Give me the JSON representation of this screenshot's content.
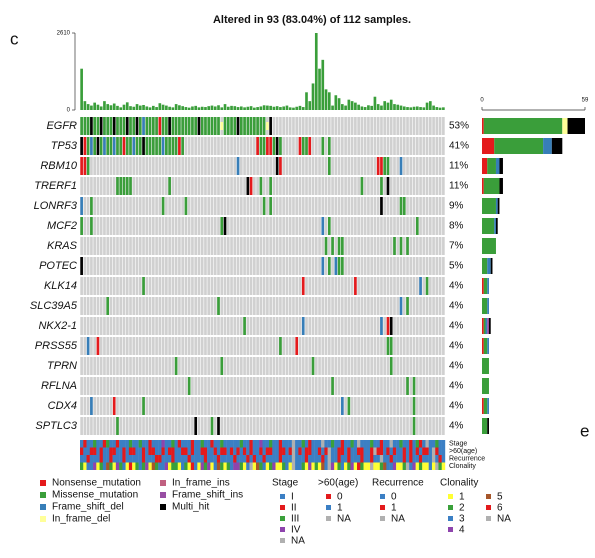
{
  "chart_data": {
    "type": "oncoprint",
    "title": "Altered in 93 (83.04%) of 112 samples.",
    "panel_label": "c",
    "next_panel_label": "e",
    "tmb": {
      "ylim": [
        0,
        2610
      ],
      "yticks": [
        0,
        2610
      ],
      "color": "#3a9e3a",
      "values": [
        1400,
        300,
        200,
        150,
        250,
        180,
        120,
        300,
        200,
        160,
        220,
        140,
        90,
        180,
        260,
        130,
        110,
        200,
        150,
        170,
        120,
        90,
        140,
        100,
        230,
        180,
        150,
        110,
        90,
        200,
        160,
        130,
        100,
        80,
        120,
        140,
        90,
        110,
        100,
        130,
        150,
        120,
        160,
        90,
        200,
        110,
        140,
        130,
        100,
        120,
        90,
        110,
        130,
        80,
        100,
        120,
        160,
        150,
        140,
        110,
        130,
        100,
        120,
        150,
        90,
        80,
        110,
        140,
        100,
        600,
        300,
        900,
        2610,
        1400,
        1700,
        700,
        600,
        150,
        500,
        400,
        200,
        150,
        350,
        300,
        250,
        180,
        120,
        100,
        160,
        140,
        450,
        200,
        150,
        300,
        250,
        350,
        200,
        180,
        150,
        120,
        100,
        90,
        110,
        120,
        100,
        90,
        250,
        300,
        150,
        100,
        80,
        90
      ]
    },
    "genes": [
      "EGFR",
      "TP53",
      "RBM10",
      "TRERF1",
      "LONRF3",
      "MCF2",
      "KRAS",
      "POTEC",
      "KLK14",
      "SLC39A5",
      "NKX2-1",
      "PRSS55",
      "TPRN",
      "RFLNA",
      "CDX4",
      "SPTLC3"
    ],
    "values": [
      53,
      41,
      11,
      11,
      9,
      8,
      7,
      5,
      4,
      4,
      4,
      4,
      4,
      4,
      4,
      4
    ],
    "value_labels": [
      "53%",
      "41%",
      "11%",
      "11%",
      "9%",
      "8%",
      "7%",
      "5%",
      "4%",
      "4%",
      "4%",
      "4%",
      "4%",
      "4%",
      "4%",
      "4%"
    ],
    "rows": [
      "MMMXMMXMMMXMMMXMMXMDMMMMNMMXMMMMMMMMXMMMMMMIMMMMXMMMMMMMMIX.....................................................",
      "XNMDMXMDMMDMMNMMDMMXMMMMMDMMMMNM......................NMMNNMXM.....NMMN...M.M.................................",
      "NNM.............................................D...........XN..............M..............NNMM...D............",
      "...........MMMMM...........M.......................XN..M..M...........................M.....M.X................",
      "D..M.....................M......M.......................M.M.................................X.....MM...........",
      "M..M.......................................MX.............................D.M..........................M.......",
      "...........................................................................M.M.MM...............M.M.M........",
      "X.........................................................................D.M.DMM.............................",
      "...................M................................................N...............N...................D.M.....",
      "........M.................................M.......................................................D.M.......",
      "..................................................M.................D.......................D.NX..............",
      "..D..N.......................................................M....N...........................MM..............",
      ".............................M.............M...........................M.......................M..............",
      ".................................M...........................................M......................M.M.....",
      "...D......N........M............................................................D.M...................M.......",
      "...........M.......................X....M.X...........................................................M........"
    ],
    "xlim": [
      0,
      59
    ],
    "xticks": [
      0,
      59
    ],
    "series": [
      {
        "name": "Nonsense_mutation",
        "color": "#e41a1c",
        "values": [
          1,
          7,
          3,
          1,
          0,
          0,
          0,
          0,
          1,
          0,
          1,
          1,
          0,
          0,
          1,
          0
        ]
      },
      {
        "name": "Missense_mutation",
        "color": "#3a9e3a",
        "values": [
          45,
          28,
          5,
          9,
          8,
          7,
          8,
          3,
          2,
          3,
          1,
          2,
          4,
          4,
          2,
          3
        ]
      },
      {
        "name": "Frame_shift_del",
        "color": "#377eb8",
        "values": [
          0,
          5,
          2,
          0,
          1,
          1,
          0,
          2,
          1,
          1,
          1,
          1,
          0,
          0,
          1,
          0
        ]
      },
      {
        "name": "In_frame_del",
        "color": "#ffff99",
        "values": [
          3,
          0,
          0,
          0,
          0,
          0,
          0,
          0,
          0,
          0,
          0,
          0,
          0,
          0,
          0,
          0
        ]
      },
      {
        "name": "In_frame_ins",
        "color": "#c06080",
        "values": [
          0,
          0,
          0,
          0,
          0,
          0,
          0,
          0,
          0,
          0,
          0,
          0,
          0,
          0,
          0,
          0
        ]
      },
      {
        "name": "Frame_shift_ins",
        "color": "#984ea3",
        "values": [
          0,
          0,
          0,
          0,
          0,
          0,
          0,
          0,
          0,
          0,
          1,
          0,
          0,
          0,
          0,
          0
        ]
      },
      {
        "name": "Multi_hit",
        "color": "#000000",
        "values": [
          10,
          6,
          2,
          2,
          1,
          1,
          0,
          1,
          0,
          0,
          1,
          0,
          0,
          0,
          0,
          1
        ]
      }
    ],
    "tracks": [
      {
        "name": "Stage",
        "values": "0100200120010002002001000300201000100200100200000200100300200100040020100040020010020400020010040020010210400200",
        "items": [
          {
            "label": "I",
            "color": "#3b7fc4"
          },
          {
            "label": "II",
            "color": "#e31a1c"
          },
          {
            "label": "III",
            "color": "#3aa03a"
          },
          {
            "label": "IV",
            "color": "#8e44ad"
          },
          {
            "label": "NA",
            "color": "#b0b0b0"
          }
        ]
      },
      {
        "name": ">60(age)",
        "values": "0110010110011010011010011010011001011001101001010101011010011001021010011010211001011001102001010110101010012011",
        "items": [
          {
            "label": "0",
            "color": "#e31a1c"
          },
          {
            "label": "1",
            "color": "#3b7fc4"
          },
          {
            "label": "NA",
            "color": "#b0b0b0"
          }
        ]
      },
      {
        "name": "Recurrence",
        "values": "0010001001000100000100011000100001000010001000010001010010000100020001000010200100100010010020010001010010002010",
        "items": [
          {
            "label": "0",
            "color": "#3b7fc4"
          },
          {
            "label": "1",
            "color": "#e31a1c"
          },
          {
            "label": "NA",
            "color": "#b0b0b0"
          }
        ]
      },
      {
        "name": "Clonality",
        "values": "1022301241031205012130412230110210520313024101233102604120130012062210301042630120130510060014223001623010020610",
        "items": [
          {
            "label": "1",
            "color": "#ffff33"
          },
          {
            "label": "2",
            "color": "#3aa03a"
          },
          {
            "label": "3",
            "color": "#3b7fc4"
          },
          {
            "label": "4",
            "color": "#8e44ad"
          },
          {
            "label": "5",
            "color": "#a6562a"
          },
          {
            "label": "6",
            "color": "#e31a1c"
          },
          {
            "label": "NA",
            "color": "#b0b0b0"
          }
        ]
      }
    ]
  }
}
